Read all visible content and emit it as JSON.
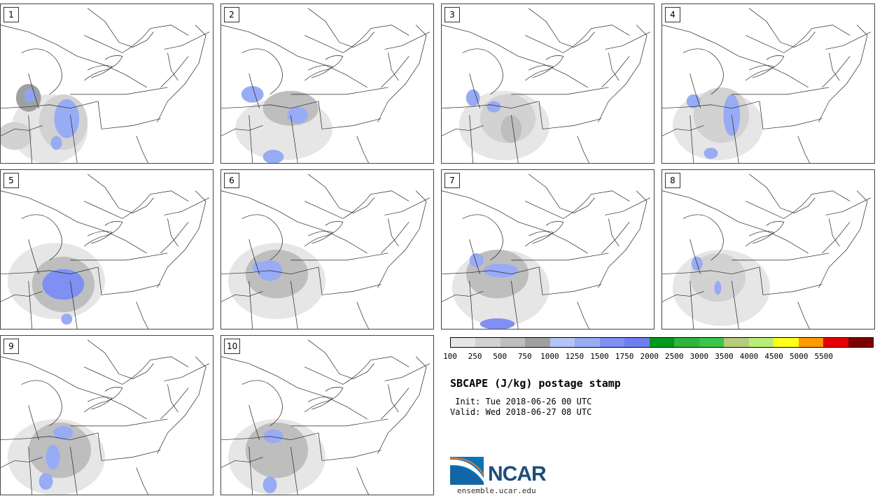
{
  "panels": [
    {
      "number": "1"
    },
    {
      "number": "2"
    },
    {
      "number": "3"
    },
    {
      "number": "4"
    },
    {
      "number": "5"
    },
    {
      "number": "6"
    },
    {
      "number": "7"
    },
    {
      "number": "8"
    },
    {
      "number": "9"
    },
    {
      "number": "10"
    }
  ],
  "colorbar": {
    "colors": [
      "#e6e6e6",
      "#d2d2d2",
      "#bebebe",
      "#a0a0a0",
      "#b4c3f8",
      "#98abf5",
      "#7f8ff2",
      "#6e7eef",
      "#009a1f",
      "#33b43d",
      "#3cc54a",
      "#b5cc7c",
      "#b8ee78",
      "#ffff1e",
      "#ff9b00",
      "#e60000",
      "#7d0000"
    ],
    "labels": [
      "100",
      "250",
      "500",
      "750",
      "1000",
      "1250",
      "1500",
      "1750",
      "2000",
      "2500",
      "3000",
      "3500",
      "4000",
      "4500",
      "5000",
      "5500"
    ]
  },
  "title": "SBCAPE (J/kg) postage stamp",
  "init": " Init: Tue 2018-06-26 00 UTC",
  "valid": "Valid: Wed 2018-06-27 08 UTC",
  "logo": {
    "text": "NCAR"
  },
  "url": "ensemble.ucar.edu"
}
